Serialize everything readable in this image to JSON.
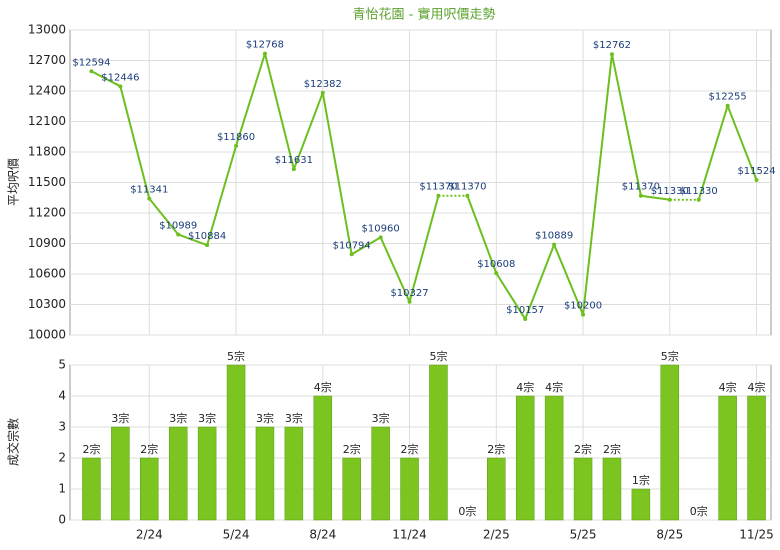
{
  "chart_data": [
    {
      "type": "line",
      "title": "青怡花園 - 實用呎價走勢",
      "y_label": "平均呎價",
      "color": "#6cbf1f",
      "values": [
        12594,
        12446,
        11341,
        10989,
        10884,
        11860,
        12768,
        11631,
        12382,
        10794,
        10960,
        10327,
        11370,
        11370,
        10608,
        10157,
        10889,
        10200,
        12762,
        11370,
        11330,
        11330,
        12255,
        11524
      ],
      "value_labels": [
        "$12594",
        "$12446",
        "$11341",
        "$10989",
        "$10884",
        "$11860",
        "$12768",
        "$11631",
        "$12382",
        "$10794",
        "$10960",
        "$10327",
        "$11370",
        "$11370",
        "$10608",
        "$10157",
        "$10889",
        "$10200",
        "$12762",
        "$11370",
        "$11330",
        "$11330",
        "$12255",
        "$11524"
      ],
      "ylim": [
        10000,
        13000
      ],
      "yticks": [
        10000,
        10300,
        10600,
        10900,
        11200,
        11500,
        11800,
        12100,
        12400,
        12700,
        13000
      ],
      "grid": true
    },
    {
      "type": "bar",
      "y_label": "成交宗數",
      "color": "#7cc520",
      "categories": [
        null,
        null,
        "2/24",
        null,
        null,
        "5/24",
        null,
        null,
        "8/24",
        null,
        null,
        "11/24",
        null,
        null,
        "2/25",
        null,
        null,
        "5/25",
        null,
        null,
        "8/25",
        null,
        null,
        "11/25"
      ],
      "values": [
        2,
        3,
        2,
        3,
        3,
        5,
        3,
        3,
        4,
        2,
        3,
        2,
        5,
        0,
        2,
        4,
        4,
        2,
        2,
        1,
        5,
        0,
        4,
        4
      ],
      "value_labels": [
        "2宗",
        "3宗",
        "2宗",
        "3宗",
        "3宗",
        "5宗",
        "3宗",
        "3宗",
        "4宗",
        "2宗",
        "3宗",
        "2宗",
        "5宗",
        "0宗",
        "2宗",
        "4宗",
        "4宗",
        "2宗",
        "2宗",
        "1宗",
        "5宗",
        "0宗",
        "4宗",
        "4宗"
      ],
      "ylim": [
        0,
        5
      ],
      "yticks": [
        0,
        1,
        2,
        3,
        4,
        5
      ],
      "grid": true
    }
  ]
}
